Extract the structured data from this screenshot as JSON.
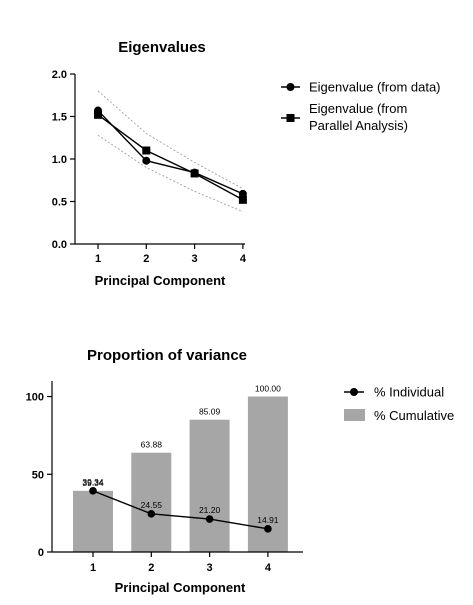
{
  "chart_data": [
    {
      "type": "line",
      "title": "Eigenvalues",
      "xlabel": "Principal Component",
      "ylabel": "",
      "x": [
        1,
        2,
        3,
        4
      ],
      "x_tick_labels": [
        "1",
        "2",
        "3",
        "4"
      ],
      "ylim": [
        0,
        2
      ],
      "y_tick_labels": [
        "0.0",
        "0.5",
        "1.0",
        "1.5",
        "2.0"
      ],
      "grid": false,
      "legend_position": "right",
      "series": [
        {
          "name": "Eigenvalue (from data)",
          "marker": "circle",
          "values": [
            1.57,
            0.98,
            0.84,
            0.59
          ]
        },
        {
          "name": "Eigenvalue (from Parallel Analysis)",
          "name_lines": [
            "Eigenvalue (from",
            "Parallel Analysis)"
          ],
          "marker": "square",
          "values": [
            1.52,
            1.1,
            0.83,
            0.52
          ]
        }
      ],
      "band_upper": [
        1.8,
        1.3,
        0.96,
        0.65
      ],
      "band_lower": [
        1.28,
        0.9,
        0.62,
        0.38
      ],
      "colors": {
        "line": "#000000",
        "band": "#a0a0a0"
      }
    },
    {
      "type": "bar",
      "title": "Proportion of variance",
      "xlabel": "Principal Component",
      "ylabel": "",
      "categories": [
        "1",
        "2",
        "3",
        "4"
      ],
      "ylim": [
        0,
        110
      ],
      "y_tick_labels": [
        "0",
        "50",
        "100"
      ],
      "grid": false,
      "legend_position": "right",
      "series": [
        {
          "name": "% Individual",
          "kind": "line",
          "values": [
            39.34,
            24.55,
            21.2,
            14.91
          ],
          "labels": [
            "39.34",
            "24.55",
            "21.20",
            "14.91"
          ]
        },
        {
          "name": "% Cumulative",
          "kind": "bar",
          "values": [
            39.34,
            63.88,
            85.09,
            100.0
          ],
          "labels": [
            "39.34",
            "63.88",
            "85.09",
            "100.00"
          ]
        }
      ],
      "colors": {
        "bar": "#a6a6a6",
        "line": "#000000"
      }
    }
  ]
}
